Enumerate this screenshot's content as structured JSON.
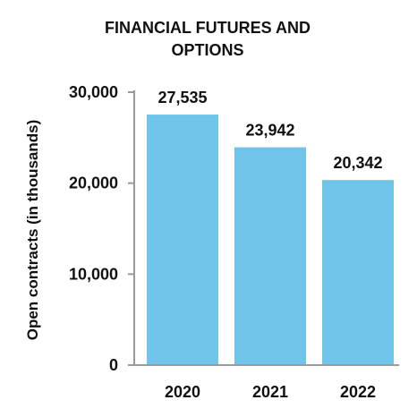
{
  "chart_data": {
    "type": "bar",
    "title_lines": [
      "FINANCIAL FUTURES AND",
      "OPTIONS"
    ],
    "categories": [
      "2020",
      "2021",
      "2022"
    ],
    "values": [
      27535,
      23942,
      20342
    ],
    "value_labels": [
      "27,535",
      "23,942",
      "20,342"
    ],
    "xlabel": "",
    "ylabel": "Open contracts (in thousands)",
    "ylim": [
      0,
      30000
    ],
    "yticks": [
      0,
      10000,
      20000,
      30000
    ],
    "ytick_labels": [
      "0",
      "10,000",
      "20,000",
      "30,000"
    ],
    "grid": false,
    "legend": "none",
    "bar_color": "#71c4e9",
    "axis_color": "#9a9a9a"
  }
}
